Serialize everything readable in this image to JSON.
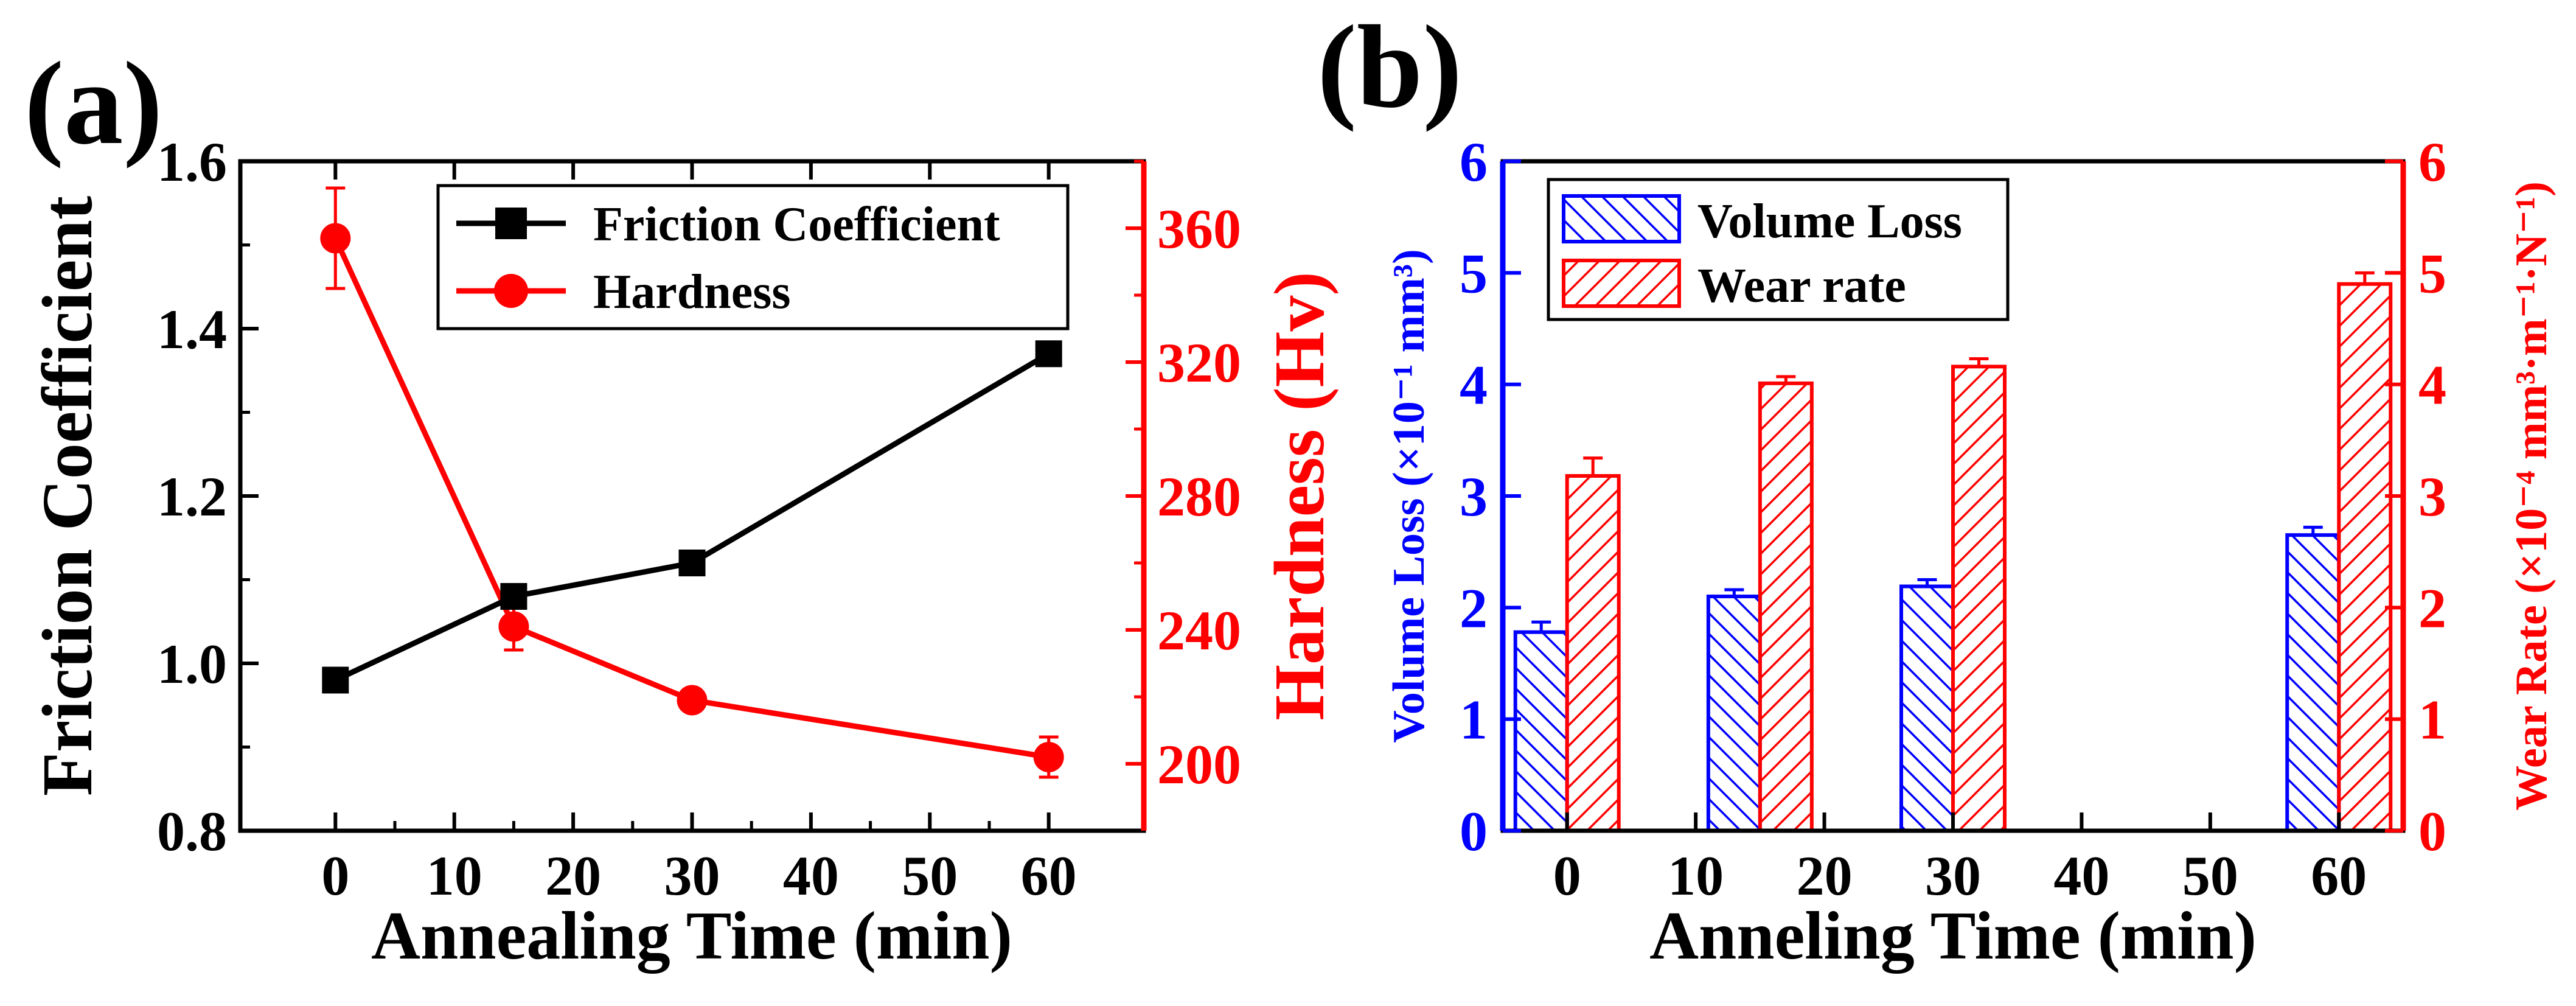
{
  "chart_data": [
    {
      "panel_label": "(a)",
      "type": "line",
      "title": "",
      "xlabel": "Annealing Time (min)",
      "ylabel_left": "Friction Coefficient",
      "ylabel_right": "Hardness (Hv)",
      "xlim": [
        -8,
        68
      ],
      "ylim_left": [
        0.8,
        1.6
      ],
      "ylim_right": [
        180,
        380
      ],
      "x_ticks": [
        0,
        10,
        20,
        30,
        40,
        50,
        60
      ],
      "x_tick_labels": [
        "0",
        "10",
        "20",
        "30",
        "40",
        "50",
        "60"
      ],
      "y_left_ticks": [
        0.8,
        1.0,
        1.2,
        1.4,
        1.6
      ],
      "y_left_tick_labels": [
        "0.8",
        "1.0",
        "1.2",
        "1.4",
        "1.6"
      ],
      "y_right_ticks": [
        200,
        240,
        280,
        320,
        360
      ],
      "y_right_tick_labels": [
        "200",
        "240",
        "280",
        "320",
        "360"
      ],
      "legend_position": "top-right",
      "colors": {
        "friction": "#000000",
        "hardness": "#ff0000"
      },
      "series": [
        {
          "name": "Friction Coefficient",
          "axis": "left",
          "marker": "square",
          "x": [
            0,
            15,
            30,
            60
          ],
          "values": [
            0.98,
            1.08,
            1.12,
            1.37
          ]
        },
        {
          "name": "Hardness",
          "axis": "right",
          "marker": "circle",
          "x": [
            0,
            15,
            30,
            60
          ],
          "values": [
            357,
            241,
            219,
            202
          ],
          "errors": [
            15,
            7,
            3,
            6
          ]
        }
      ]
    },
    {
      "panel_label": "(b)",
      "type": "bar",
      "title": "",
      "xlabel": "Anneling Time (min)",
      "ylabel_left": "Volume Loss (×10⁻¹ mm³)",
      "ylabel_right": "Wear Rate (×10⁻⁴ mm³·m⁻¹·N⁻¹)",
      "xlim": [
        -5,
        65
      ],
      "ylim_left": [
        0,
        6
      ],
      "ylim_right": [
        0,
        6
      ],
      "x_ticks": [
        0,
        10,
        20,
        30,
        40,
        50,
        60
      ],
      "x_tick_labels": [
        "0",
        "10",
        "20",
        "30",
        "40",
        "50",
        "60"
      ],
      "y_left_ticks": [
        0,
        1,
        2,
        3,
        4,
        5,
        6
      ],
      "y_left_tick_labels": [
        "0",
        "1",
        "2",
        "3",
        "4",
        "5",
        "6"
      ],
      "y_right_ticks": [
        0,
        1,
        2,
        3,
        4,
        5,
        6
      ],
      "y_right_tick_labels": [
        "0",
        "1",
        "2",
        "3",
        "4",
        "5",
        "6"
      ],
      "legend_position": "top-left",
      "bar_group_x": [
        0,
        15,
        30,
        60
      ],
      "colors": {
        "volume": "#0000ff",
        "wear": "#ff0000"
      },
      "series": [
        {
          "name": "Volume Loss",
          "axis": "left",
          "values": [
            1.78,
            2.1,
            2.19,
            2.65
          ],
          "errors": [
            0.09,
            0.06,
            0.06,
            0.07
          ]
        },
        {
          "name": "Wear rate",
          "axis": "right",
          "values": [
            3.18,
            4.01,
            4.16,
            4.9
          ],
          "errors": [
            0.16,
            0.06,
            0.07,
            0.1
          ]
        }
      ]
    }
  ]
}
